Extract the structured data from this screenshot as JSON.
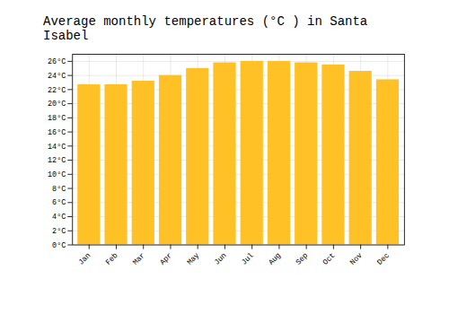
{
  "chart_data": {
    "type": "bar",
    "title": "Average monthly temperatures (°C ) in Santa Isabel",
    "categories": [
      "Jan",
      "Feb",
      "Mar",
      "Apr",
      "May",
      "Jun",
      "Jul",
      "Aug",
      "Sep",
      "Oct",
      "Nov",
      "Dec"
    ],
    "values": [
      22.7,
      22.7,
      23.2,
      24.0,
      25.0,
      25.8,
      26.0,
      26.0,
      25.8,
      25.5,
      24.6,
      23.4
    ],
    "color": "#FFC125",
    "ylim": [
      0,
      27
    ],
    "yticks": [
      {
        "value": 0,
        "label": "0°C"
      },
      {
        "value": 2,
        "label": "2°C"
      },
      {
        "value": 4,
        "label": "4°C"
      },
      {
        "value": 6,
        "label": "6°C"
      },
      {
        "value": 8,
        "label": "8°C"
      },
      {
        "value": 10,
        "label": "10°C"
      },
      {
        "value": 12,
        "label": "12°C"
      },
      {
        "value": 14,
        "label": "14°C"
      },
      {
        "value": 16,
        "label": "16°C"
      },
      {
        "value": 18,
        "label": "18°C"
      },
      {
        "value": 20,
        "label": "20°C"
      },
      {
        "value": 22,
        "label": "22°C"
      },
      {
        "value": 24,
        "label": "24°C"
      },
      {
        "value": 26,
        "label": "26°C"
      }
    ],
    "grid": true
  }
}
